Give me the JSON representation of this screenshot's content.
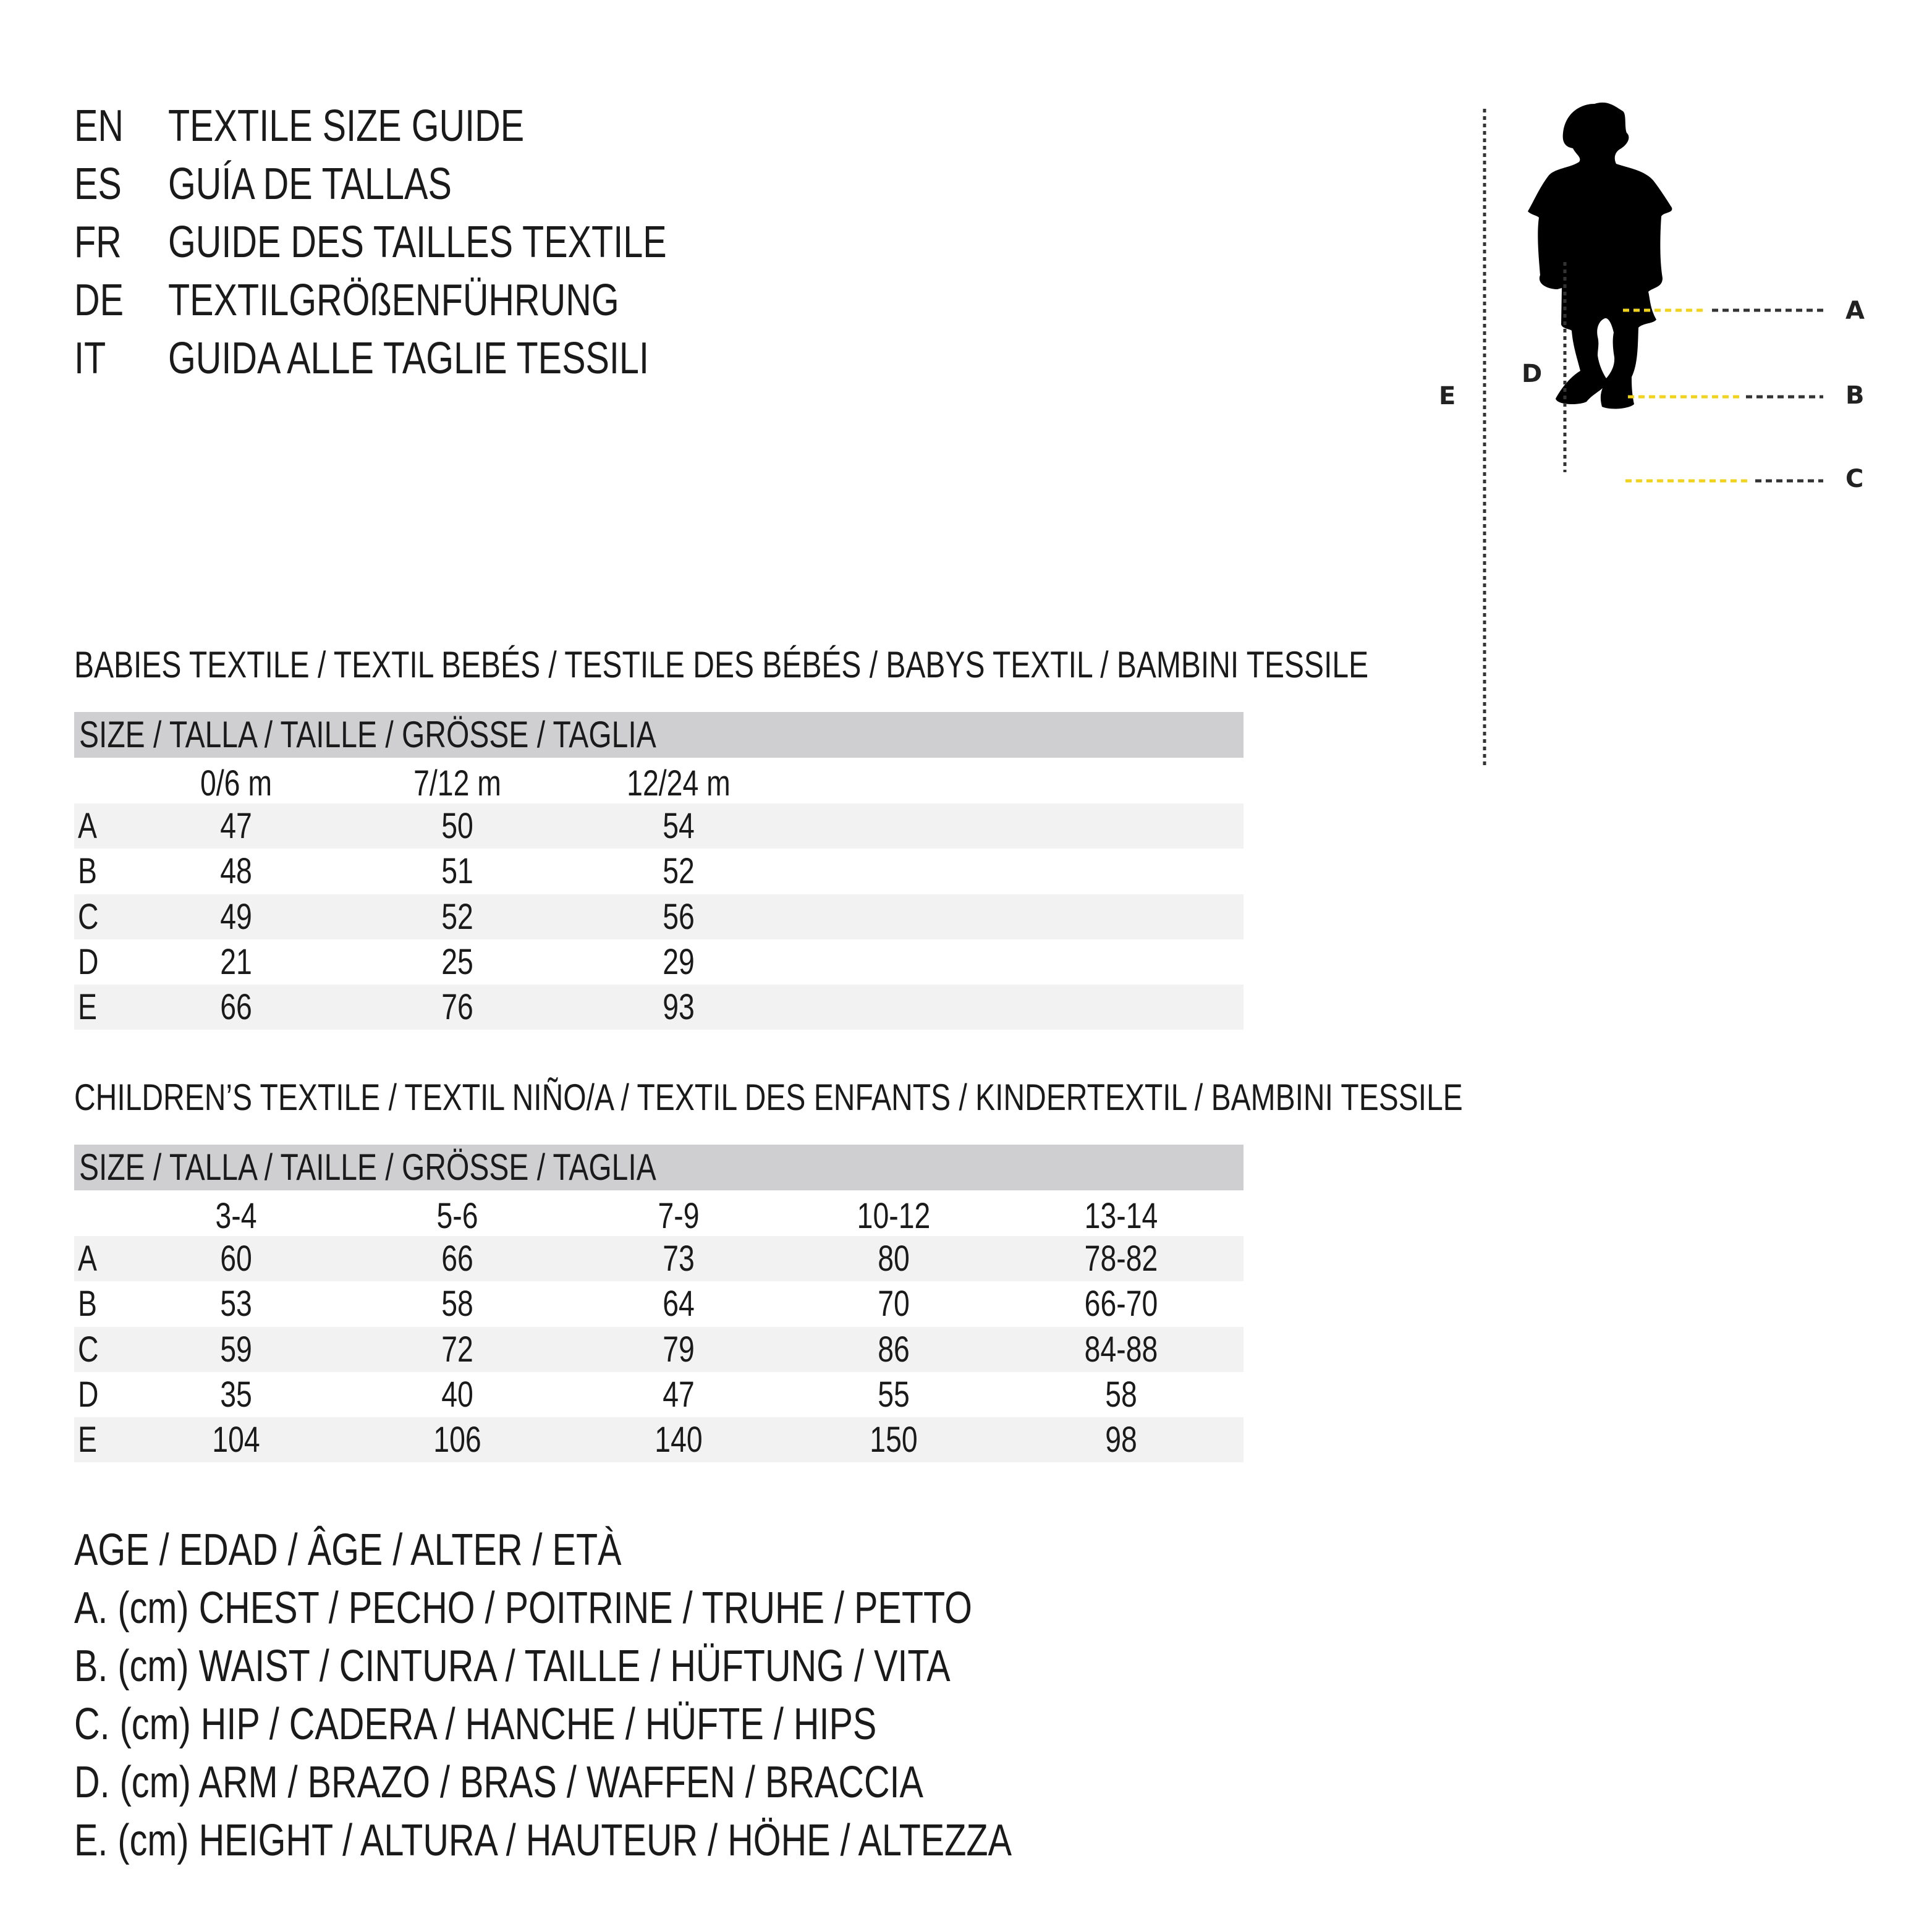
{
  "titles": [
    {
      "lang": "EN",
      "text": "TEXTILE SIZE GUIDE"
    },
    {
      "lang": "ES",
      "text": "GUÍA DE TALLAS"
    },
    {
      "lang": "FR",
      "text": "GUIDE DES TAILLES TEXTILE"
    },
    {
      "lang": "DE",
      "text": "TEXTILGRÖßENFÜHRUNG"
    },
    {
      "lang": "IT",
      "text": "GUIDA ALLE TAGLIE TESSILI"
    }
  ],
  "babies": {
    "title": "BABIES TEXTILE / TEXTIL BEBÉS / TESTILE DES BÉBÉS / BABYS TEXTIL / BAMBINI TESSILE",
    "size_header": "SIZE / TALLA / TAILLE / GRÖSSE / TAGLIA",
    "columns": [
      "0/6 m",
      "7/12 m",
      "12/24 m"
    ],
    "rows": [
      {
        "label": "A",
        "values": [
          "47",
          "50",
          "54"
        ]
      },
      {
        "label": "B",
        "values": [
          "48",
          "51",
          "52"
        ]
      },
      {
        "label": "C",
        "values": [
          "49",
          "52",
          "56"
        ]
      },
      {
        "label": "D",
        "values": [
          "21",
          "25",
          "29"
        ]
      },
      {
        "label": "E",
        "values": [
          "66",
          "76",
          "93"
        ]
      }
    ]
  },
  "children": {
    "title": "CHILDREN’S TEXTILE / TEXTIL NIÑO/A / TEXTIL DES ENFANTS / KINDERTEXTIL / BAMBINI TESSILE",
    "size_header": "SIZE / TALLA / TAILLE / GRÖSSE / TAGLIA",
    "columns": [
      "3-4",
      "5-6",
      "7-9",
      "10-12",
      "13-14"
    ],
    "rows": [
      {
        "label": "A",
        "values": [
          "60",
          "66",
          "73",
          "80",
          "78-82"
        ]
      },
      {
        "label": "B",
        "values": [
          "53",
          "58",
          "64",
          "70",
          "66-70"
        ]
      },
      {
        "label": "C",
        "values": [
          "59",
          "72",
          "79",
          "86",
          "84-88"
        ]
      },
      {
        "label": "D",
        "values": [
          "35",
          "40",
          "47",
          "55",
          "58"
        ]
      },
      {
        "label": "E",
        "values": [
          "104",
          "106",
          "140",
          "150",
          "98"
        ]
      }
    ]
  },
  "legend": [
    "AGE / EDAD / ÂGE / ALTER / ETÀ",
    "A. (cm) CHEST / PECHO / POITRINE / TRUHE / PETTO",
    "B. (cm) WAIST / CINTURA / TAILLE / HÜFTUNG / VITA",
    "C. (cm) HIP / CADERA / HANCHE / HÜFTE / HIPS",
    "D. (cm) ARM / BRAZO / BRAS / WAFFEN / BRACCIA",
    "E. (cm) HEIGHT / ALTURA / HAUTEUR / HÖHE / ALTEZZA"
  ],
  "figure": {
    "labels": {
      "a": "A",
      "b": "B",
      "c": "C",
      "d": "D",
      "e": "E"
    },
    "icon": "child-silhouette-icon",
    "colors": {
      "silhouette": "#000000",
      "measure_line": "#f2d21b",
      "guide_line": "#333333",
      "table_header": "#cfcfd1",
      "row_shade": "#f2f2f2"
    }
  }
}
